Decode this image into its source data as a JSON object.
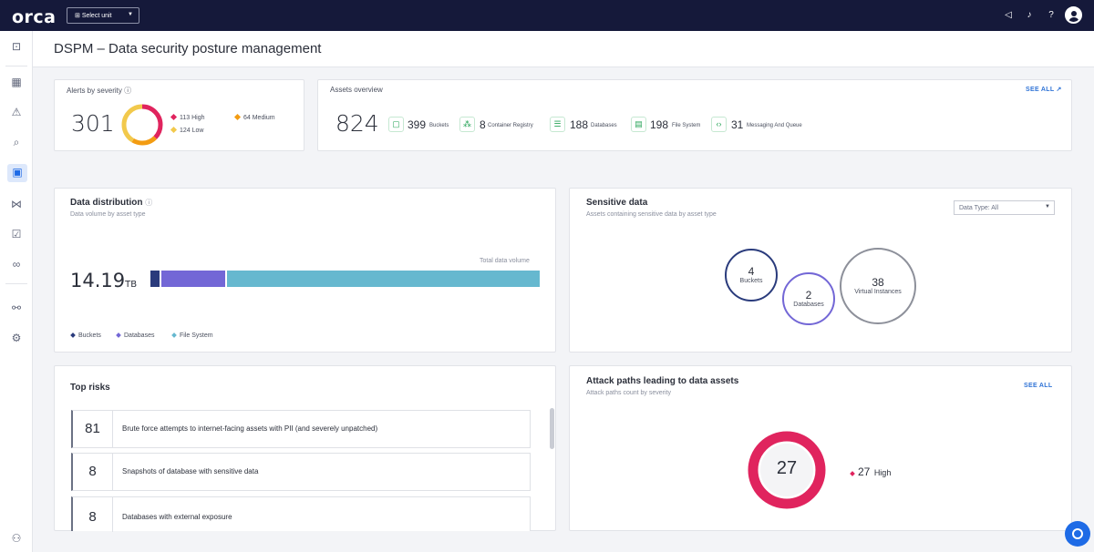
{
  "topbar": {
    "logo": "orca",
    "unit_select": "Select unit",
    "icons": [
      "megaphone-icon",
      "bell-icon",
      "help-icon",
      "user-avatar-icon"
    ]
  },
  "sidebar": {
    "icons": [
      "shield-icon",
      "dashboard-icon",
      "alert-icon",
      "search-icon",
      "dspm-icon",
      "graph-icon",
      "compliance-icon",
      "glasses-icon",
      "integrations-icon",
      "settings-icon",
      "user-settings-icon"
    ],
    "active": "dspm-icon"
  },
  "page": {
    "title": "DSPM – Data security posture management"
  },
  "alerts": {
    "title": "Alerts by severity",
    "total": "301",
    "legend": [
      {
        "label": "113 High",
        "color": "#e0245e"
      },
      {
        "label": "64 Medium",
        "color": "#f39c12"
      },
      {
        "label": "124 Low",
        "color": "#f2c94c"
      }
    ]
  },
  "assets": {
    "title": "Assets overview",
    "see_all": "SEE ALL",
    "total": "824",
    "items": [
      {
        "count": "399",
        "label": "Buckets"
      },
      {
        "count": "8",
        "label": "Container Registry"
      },
      {
        "count": "188",
        "label": "Databases"
      },
      {
        "count": "198",
        "label": "File System"
      },
      {
        "count": "31",
        "label": "Messaging And Queue"
      }
    ]
  },
  "distribution": {
    "title": "Data distribution",
    "subtitle": "Data volume by asset type",
    "total_label": "Total data volume",
    "total_value": "14.19",
    "total_unit": "TB",
    "segments": [
      {
        "label": "Buckets",
        "share": 0.024,
        "color": "#2a3b7c"
      },
      {
        "label": "Databases",
        "share": 0.165,
        "color": "#7367d6"
      },
      {
        "label": "File System",
        "share": 0.811,
        "color": "#66b8cf"
      }
    ]
  },
  "sensitive": {
    "title": "Sensitive data",
    "subtitle": "Assets containing sensitive data by asset type",
    "filter": "Data Type: All",
    "bubbles": [
      {
        "count": "4",
        "label": "Buckets",
        "color": "#2a3b7c"
      },
      {
        "count": "2",
        "label": "Databases",
        "color": "#7367d6"
      },
      {
        "count": "38",
        "label": "Virtual Instances",
        "color": "#8d909a"
      }
    ]
  },
  "risks": {
    "title": "Top risks",
    "items": [
      {
        "count": "81",
        "text": "Brute force attempts to internet-facing assets with PII (and severely unpatched)"
      },
      {
        "count": "8",
        "text": "Snapshots of database with sensitive data"
      },
      {
        "count": "8",
        "text": "Databases with external exposure"
      }
    ]
  },
  "attack_paths": {
    "title": "Attack paths leading to data assets",
    "subtitle": "Attack paths count by severity",
    "see_all": "SEE ALL",
    "total": "27",
    "legend_count": "27",
    "legend_label": "High",
    "color": "#e0245e"
  }
}
